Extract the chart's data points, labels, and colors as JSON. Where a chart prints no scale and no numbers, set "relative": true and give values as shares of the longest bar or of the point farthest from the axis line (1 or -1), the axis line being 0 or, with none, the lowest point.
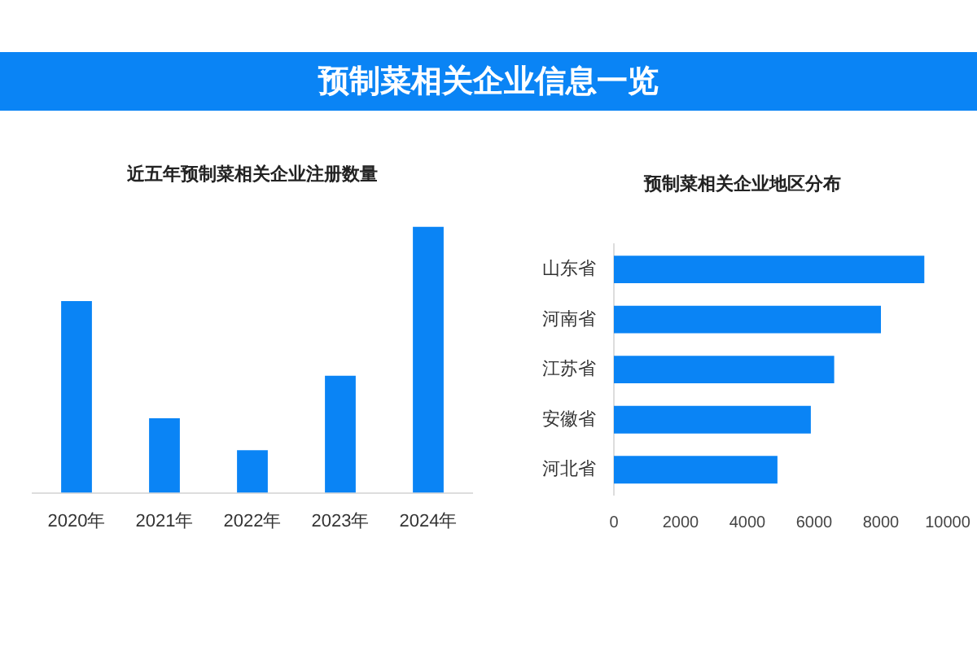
{
  "chart_data": [
    {
      "type": "other",
      "title": "预制菜相关企业信息一览",
      "color": "#0a84f5"
    },
    {
      "type": "bar",
      "title": "近五年预制菜相关企业注册数量",
      "categories": [
        "2020年",
        "2021年",
        "2022年",
        "2023年",
        "2024年"
      ],
      "values": [
        0.72,
        0.28,
        0.16,
        0.44,
        1
      ],
      "color": "#0a84f5",
      "relative": true
    },
    {
      "type": "bar",
      "orientation": "horizontal",
      "title": "预制菜相关企业地区分布",
      "categories": [
        "山东省",
        "河南省",
        "江苏省",
        "安徽省",
        "河北省"
      ],
      "values": [
        9300,
        8000,
        6600,
        5900,
        4900
      ],
      "color": "#0a84f5",
      "xlim": [
        0,
        10000
      ],
      "xticks": [
        0,
        2000,
        4000,
        6000,
        8000,
        10000
      ]
    }
  ]
}
